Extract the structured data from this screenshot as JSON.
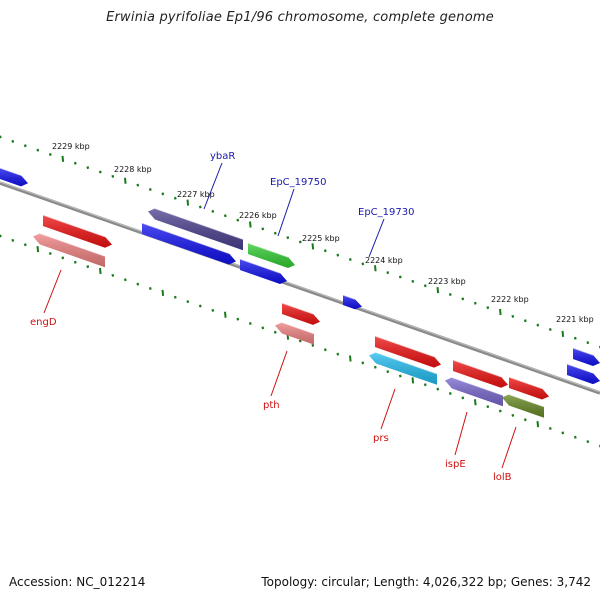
{
  "title": "Erwinia pyrifoliae Ep1/96 chromosome, complete genome",
  "footer": {
    "accession": "Accession: NC_012214",
    "topology": "Topology: circular; Length: 4,026,322 bp; Genes: 3,742"
  },
  "scale_ticks": [
    {
      "label": "2229 kbp"
    },
    {
      "label": "2228 kbp"
    },
    {
      "label": "2227 kbp"
    },
    {
      "label": "2226 kbp"
    },
    {
      "label": "2225 kbp"
    },
    {
      "label": "2224 kbp"
    },
    {
      "label": "2223 kbp"
    },
    {
      "label": "2222 kbp"
    },
    {
      "label": "2221 kbp"
    }
  ],
  "gene_labels": [
    {
      "name": "ybaR",
      "color": "#1a1aaa"
    },
    {
      "name": "EpC_19750",
      "color": "#1a1aaa"
    },
    {
      "name": "EpC_19730",
      "color": "#1a1aaa"
    },
    {
      "name": "engD",
      "color": "#cc1111"
    },
    {
      "name": "pth",
      "color": "#cc1111"
    },
    {
      "name": "prs",
      "color": "#cc1111"
    },
    {
      "name": "ispE",
      "color": "#cc1111"
    },
    {
      "name": "lolB",
      "color": "#cc1111"
    }
  ],
  "colors": {
    "backbone": "#888888",
    "tick": "#1a7a1a",
    "red_gene": "#ee1111",
    "pink_gene": "#ee8080",
    "blue_gene": "#1111ee",
    "navy_gene": "#4a3f8e",
    "green_gene": "#33cc33",
    "cyan_gene": "#22bbee",
    "purple_gene": "#7766cc",
    "olive_gene": "#668822"
  }
}
